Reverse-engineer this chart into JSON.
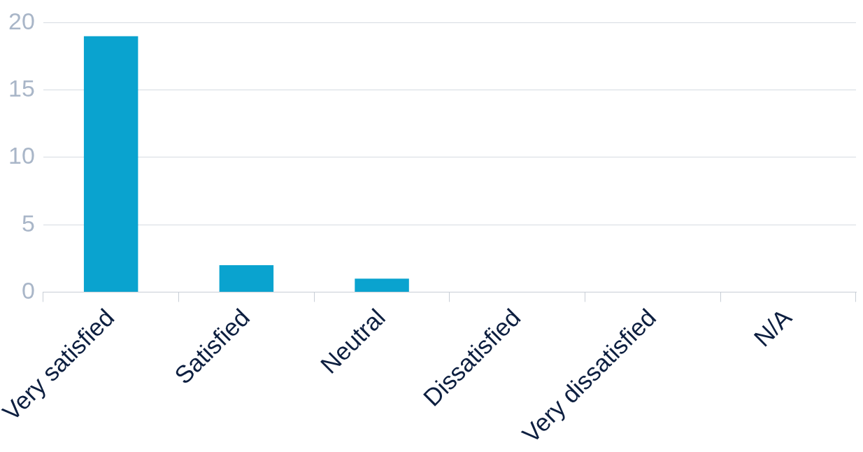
{
  "chart_data": {
    "type": "bar",
    "categories": [
      "Very satisfied",
      "Satisfied",
      "Neutral",
      "Dissatisfied",
      "Very dissatisfied",
      "N/A"
    ],
    "values": [
      19,
      2,
      1,
      0,
      0,
      0
    ],
    "color": "#0aa3cf",
    "ylim": [
      0,
      20
    ],
    "yticks": [
      0,
      5,
      10,
      15,
      20
    ],
    "grid": "y"
  }
}
